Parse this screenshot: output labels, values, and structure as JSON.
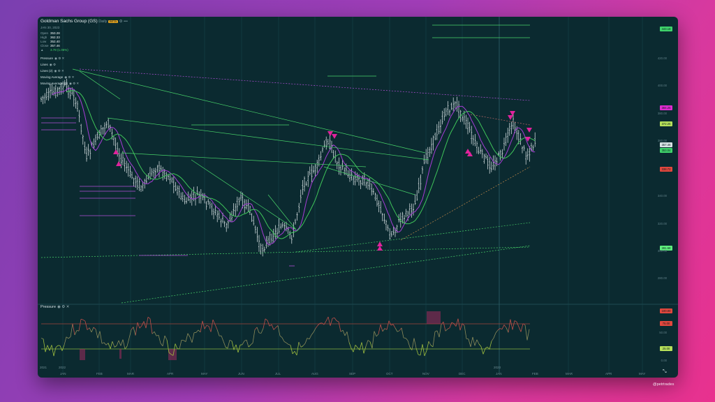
{
  "header": {
    "title": "Goldman Sachs Group (GS)",
    "interval": "Daily",
    "badge": "BETA",
    "date": "JAN 30, 2023",
    "ohlc": [
      {
        "k": "Open",
        "v": "353.28"
      },
      {
        "k": "High",
        "v": "362.33"
      },
      {
        "k": "Low",
        "v": "352.40"
      },
      {
        "k": "Close",
        "v": "357.46"
      }
    ],
    "change": "3.78 (1.06%)"
  },
  "indicators": [
    {
      "label": "Pressure"
    },
    {
      "label": "Lines"
    },
    {
      "label": "Lines (2)"
    },
    {
      "label": "Moving Average"
    },
    {
      "label": "Moving Average (2)"
    }
  ],
  "pressure_label": "Pressure",
  "price_axis": [
    "420.00",
    "400.00",
    "380.00",
    "360.00",
    "340.00",
    "320.00",
    "300.00",
    "280.00",
    "260.00"
  ],
  "price_tags": [
    {
      "label": "443.18",
      "color": "#3fd46b"
    },
    {
      "label": "384.25",
      "color": "#e02bd0"
    },
    {
      "label": "372.25",
      "color": "#b6e05a"
    },
    {
      "label": "357.46",
      "color": "#d9e3e5"
    },
    {
      "label": "353.04",
      "color": "#3fd46b"
    },
    {
      "label": "338.72",
      "color": "#e2473d"
    },
    {
      "label": "281.58",
      "color": "#5ff07d"
    }
  ],
  "osc_tags": [
    {
      "label": "100.00",
      "color": "#e2473d"
    },
    {
      "label": "75.00",
      "color": "#e2473d"
    },
    {
      "label": "25.00",
      "color": "#b6e05a"
    }
  ],
  "osc_axis": [
    "50.00",
    "0.00"
  ],
  "year_labels": [
    "2021",
    "2022",
    "2023"
  ],
  "months": [
    "JAN",
    "FEB",
    "MAR",
    "APR",
    "MAY",
    "JUN",
    "JUL",
    "AUG",
    "SEP",
    "OCT",
    "NOV",
    "DEC",
    "JAN",
    "FEB",
    "MAR",
    "APR",
    "MAY"
  ],
  "credit": "@petrtrades",
  "colors": {
    "bg": "#0b2a30",
    "candle": "#e6eef0",
    "ma_fast": "#a63dd6",
    "ma_slow": "#3fc55a",
    "trend_green": "#48d46a",
    "trend_purple": "#b24fd8",
    "marker": "#e0239c"
  }
}
